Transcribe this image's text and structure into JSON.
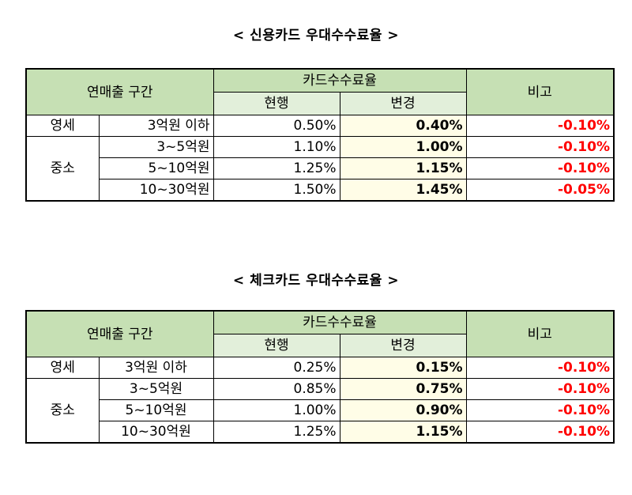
{
  "credit": {
    "title": "< 신용카드 우대수수료율 >",
    "header": {
      "range": "연매출 구간",
      "fee_group": "카드수수료율",
      "current": "현행",
      "changed": "변경",
      "note": "비고"
    },
    "group_small": "영세",
    "group_mid": "중소",
    "rows": [
      {
        "range": "3억원 이하",
        "current": "0.50%",
        "changed": "0.40%",
        "note": "-0.10%"
      },
      {
        "range": "3~5억원",
        "current": "1.10%",
        "changed": "1.00%",
        "note": "-0.10%"
      },
      {
        "range": "5~10억원",
        "current": "1.25%",
        "changed": "1.15%",
        "note": "-0.10%"
      },
      {
        "range": "10~30억원",
        "current": "1.50%",
        "changed": "1.45%",
        "note": "-0.05%"
      }
    ]
  },
  "check": {
    "title": "< 체크카드 우대수수료율 >",
    "header": {
      "range": "연매출 구간",
      "fee_group": "카드수수료율",
      "current": "현행",
      "changed": "변경",
      "note": "비고"
    },
    "group_small": "영세",
    "group_mid": "중소",
    "rows": [
      {
        "range": "3억원 이하",
        "current": "0.25%",
        "changed": "0.15%",
        "note": "-0.10%"
      },
      {
        "range": "3~5억원",
        "current": "0.85%",
        "changed": "0.75%",
        "note": "-0.10%"
      },
      {
        "range": "5~10억원",
        "current": "1.00%",
        "changed": "0.90%",
        "note": "-0.10%"
      },
      {
        "range": "10~30억원",
        "current": "1.25%",
        "changed": "1.15%",
        "note": "-0.10%"
      }
    ]
  },
  "colors": {
    "header_green": "#c6e0b4",
    "subheader_green": "#e2efda",
    "changed_highlight": "#fffde7",
    "negative_red": "#ff0000"
  }
}
